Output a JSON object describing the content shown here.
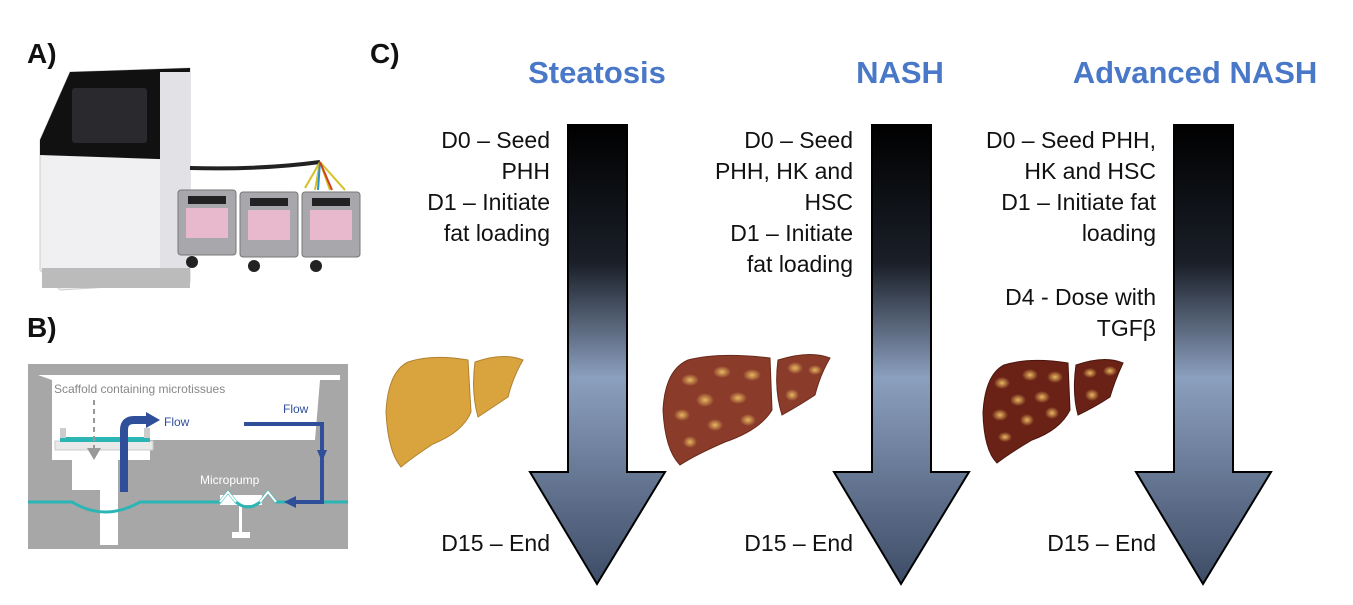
{
  "panels": {
    "a": {
      "label": "A)"
    },
    "b": {
      "label": "B)",
      "scaffold_label": "Scaffold containing microtissues",
      "flow_label_1": "Flow",
      "flow_label_2": "Flow",
      "micropump_label": "Micropump"
    },
    "c": {
      "label": "C)",
      "columns": [
        {
          "title": "Steatosis",
          "steps": [
            "D0 – Seed",
            "PHH",
            "D1 – Initiate",
            "fat loading"
          ],
          "extra_steps": [],
          "end": "D15 – End",
          "liver_color": "#d9a43e"
        },
        {
          "title": "NASH",
          "steps": [
            "D0 – Seed",
            "PHH, HK and",
            "HSC",
            "D1 – Initiate",
            "fat loading"
          ],
          "extra_steps": [],
          "end": "D15 – End",
          "liver_color": "#8a3b2a"
        },
        {
          "title": "Advanced NASH",
          "steps": [
            "D0 – Seed PHH,",
            "HK and HSC",
            "D1 – Initiate fat",
            "loading"
          ],
          "extra_steps": [
            "D4 - Dose with",
            "TGFβ"
          ],
          "end": "D15 – End",
          "liver_color": "#6b2216"
        }
      ]
    }
  },
  "colors": {
    "title": "#4a78c8",
    "flow": "#2f4f9a",
    "membrane": "#2bb5b5",
    "device_gray": "#9a9a9a"
  }
}
